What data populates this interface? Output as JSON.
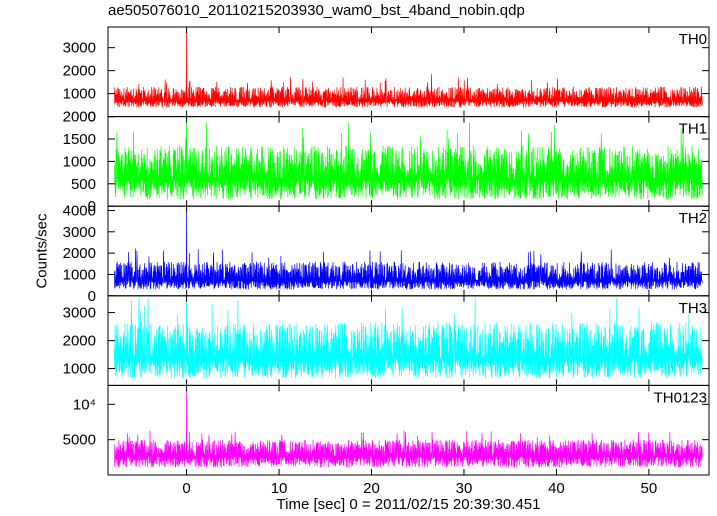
{
  "chart_data": {
    "type": "line",
    "title": "ae505076010_20110215203930_wam0_bst_4band_nobin.qdp",
    "xlabel": "Time [sec] 0 = 2011/02/15 20:39:30.451",
    "ylabel": "Counts/sec",
    "xlim": [
      -8.5,
      56.5
    ],
    "x_ticks": [
      0,
      10,
      20,
      30,
      40,
      50
    ],
    "x_tick_labels": [
      "0",
      "10",
      "20",
      "30",
      "40",
      "50"
    ],
    "grid": false,
    "panels": [
      {
        "name": "TH0",
        "color": "#ff0000",
        "ylim": [
          0,
          3900
        ],
        "y_scale": "linear",
        "y_ticks": [
          0,
          1000,
          2000,
          3000
        ],
        "y_tick_labels": [
          "0",
          "1000",
          "2000",
          "3000"
        ],
        "baseline": 700,
        "noise_low": 300,
        "noise_high": 600,
        "features": [
          {
            "x": 0,
            "y": 3900
          },
          {
            "x": 0.3,
            "y": 1500
          },
          {
            "x": 26.5,
            "y": 1850
          }
        ]
      },
      {
        "name": "TH1",
        "color": "#00ff00",
        "ylim": [
          0,
          2000
        ],
        "y_scale": "linear",
        "y_ticks": [
          0,
          500,
          1000,
          1500,
          2000
        ],
        "y_tick_labels": [
          "0",
          "500",
          "1000",
          "1500",
          "2000"
        ],
        "baseline": 600,
        "noise_low": 450,
        "noise_high": 750,
        "features": [
          {
            "x": 0,
            "y": 2000
          },
          {
            "x": 12.5,
            "y": 1750
          }
        ]
      },
      {
        "name": "TH2",
        "color": "#0000ff",
        "ylim": [
          0,
          4200
        ],
        "y_scale": "linear",
        "y_ticks": [
          0,
          1000,
          2000,
          3000,
          4000
        ],
        "y_tick_labels": [
          "0",
          "1000",
          "2000",
          "3000",
          "4000"
        ],
        "baseline": 700,
        "noise_low": 400,
        "noise_high": 900,
        "features": [
          {
            "x": 0,
            "y": 4200
          },
          {
            "x": 0.3,
            "y": 2000
          }
        ]
      },
      {
        "name": "TH3",
        "color": "#00ffff",
        "ylim": [
          400,
          3600
        ],
        "y_scale": "linear",
        "y_ticks": [
          1000,
          2000,
          3000
        ],
        "y_tick_labels": [
          "1000",
          "2000",
          "3000"
        ],
        "baseline": 1350,
        "noise_low": 700,
        "noise_high": 1300,
        "features": [
          {
            "x": 0,
            "y": 3600
          },
          {
            "x": -5,
            "y": 3050
          }
        ]
      },
      {
        "name": "TH0123",
        "color": "#ff00ff",
        "ylim": [
          2500,
          14500
        ],
        "y_scale": "log",
        "y_ticks": [
          5000,
          10000
        ],
        "y_tick_labels": [
          "5000",
          "10⁴"
        ],
        "baseline": 3600,
        "noise_low": 700,
        "noise_high": 1400,
        "features": [
          {
            "x": 0,
            "y": 14500
          },
          {
            "x": 0.3,
            "y": 5800
          }
        ]
      }
    ]
  }
}
